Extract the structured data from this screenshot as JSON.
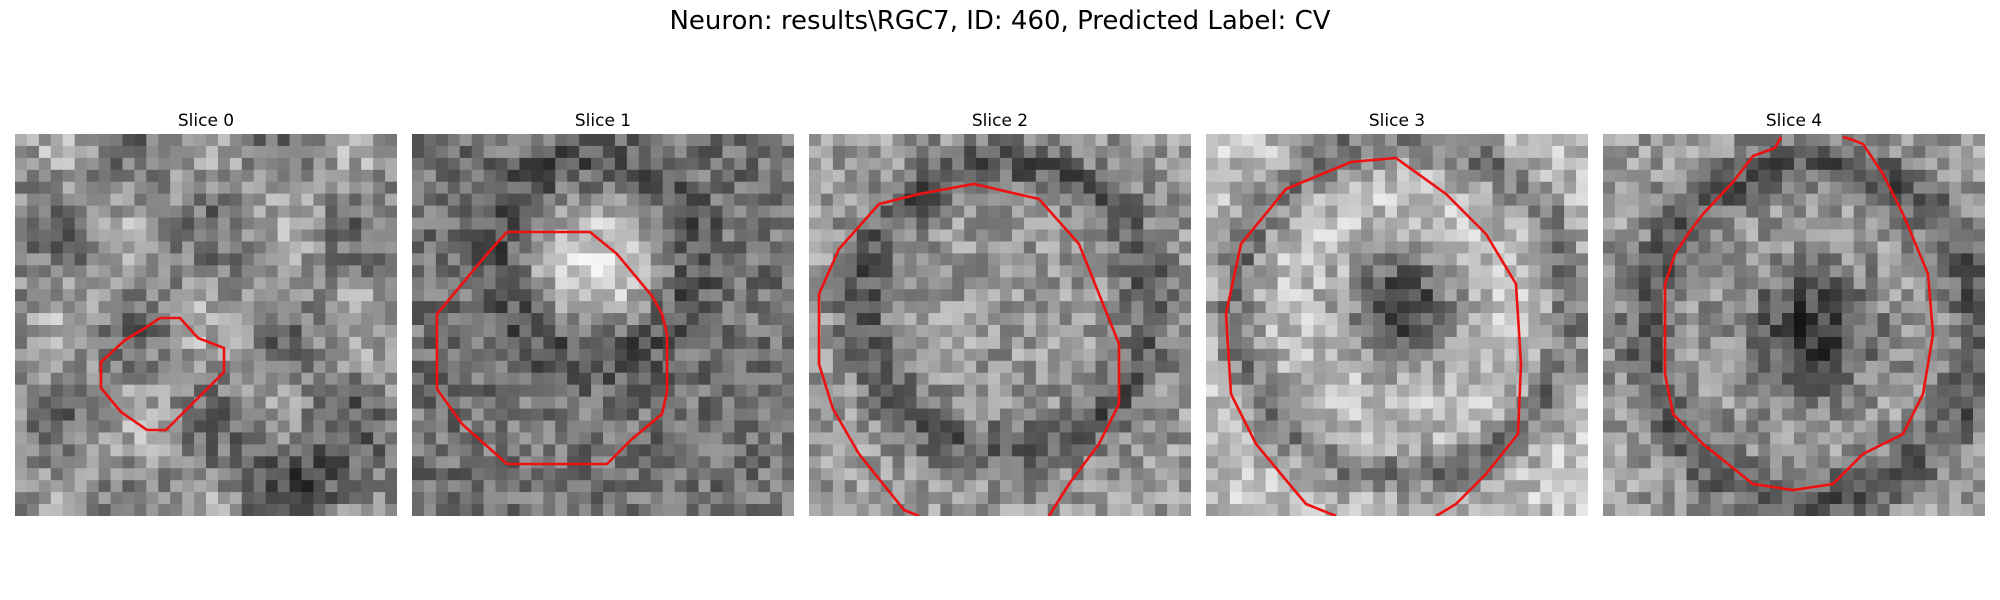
{
  "figure": {
    "title": "Neuron: results\\RGC7, ID: 460, Predicted Label: CV"
  },
  "panels": [
    {
      "title": "Slice 0",
      "image": "grayscale-microscopy-slice-0",
      "overlay_color": "#ee1111"
    },
    {
      "title": "Slice 1",
      "image": "grayscale-microscopy-slice-1",
      "overlay_color": "#ee1111"
    },
    {
      "title": "Slice 2",
      "image": "grayscale-microscopy-slice-2",
      "overlay_color": "#ee1111"
    },
    {
      "title": "Slice 3",
      "image": "grayscale-microscopy-slice-3",
      "overlay_color": "#ee1111"
    },
    {
      "title": "Slice 4",
      "image": "grayscale-microscopy-slice-4",
      "overlay_color": "#ee1111"
    }
  ]
}
